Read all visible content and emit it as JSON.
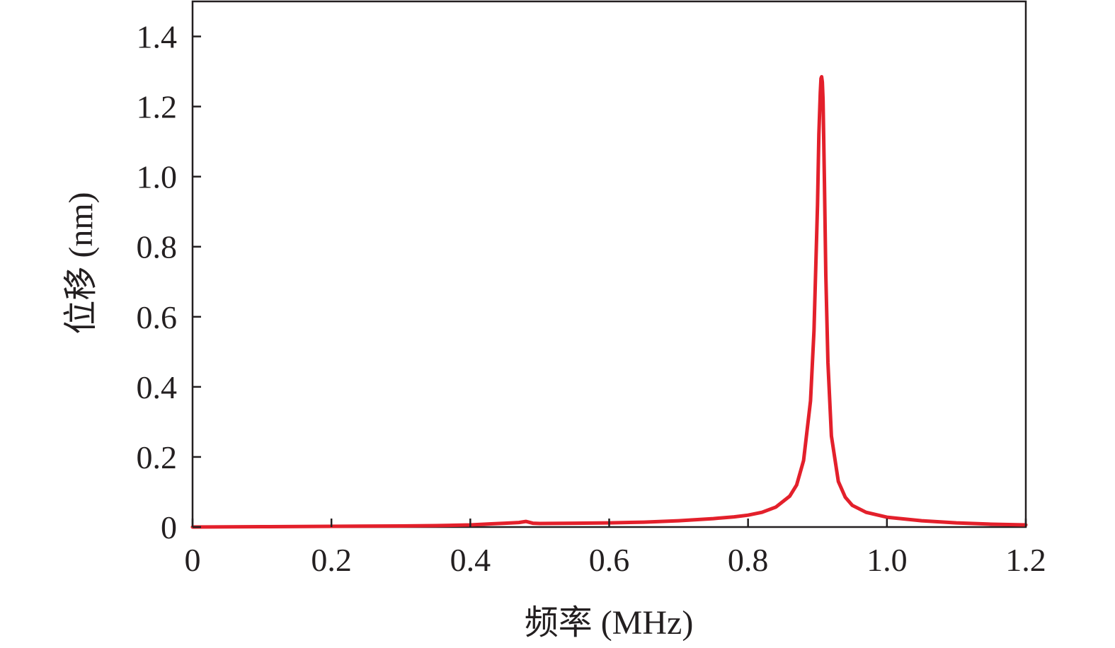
{
  "chart_data": {
    "type": "line",
    "xlabel": "频率 (MHz)",
    "ylabel": "位移 (nm)",
    "xlim": [
      0,
      1.2
    ],
    "ylim": [
      0,
      1.5
    ],
    "xticks": [
      0,
      0.2,
      0.4,
      0.6,
      0.8,
      1.0,
      1.2
    ],
    "xtick_labels": [
      "0",
      "0.2",
      "0.4",
      "0.6",
      "0.8",
      "1.0",
      "1.2"
    ],
    "yticks": [
      0,
      0.2,
      0.4,
      0.6,
      0.8,
      1.0,
      1.2,
      1.4
    ],
    "ytick_labels": [
      "0",
      "0.2",
      "0.4",
      "0.6",
      "0.8",
      "1.0",
      "1.2",
      "1.4"
    ],
    "grid": false,
    "legend": "none",
    "series": [
      {
        "color": "#e3202b",
        "x": [
          0,
          0.1,
          0.2,
          0.3,
          0.35,
          0.4,
          0.43,
          0.45,
          0.47,
          0.48,
          0.49,
          0.5,
          0.55,
          0.6,
          0.65,
          0.7,
          0.75,
          0.78,
          0.8,
          0.82,
          0.84,
          0.86,
          0.87,
          0.88,
          0.89,
          0.895,
          0.9,
          0.902,
          0.904,
          0.905,
          0.906,
          0.907,
          0.908,
          0.91,
          0.912,
          0.915,
          0.92,
          0.93,
          0.94,
          0.95,
          0.97,
          1.0,
          1.05,
          1.1,
          1.15,
          1.2
        ],
        "y": [
          0,
          0.001,
          0.002,
          0.003,
          0.004,
          0.006,
          0.009,
          0.011,
          0.013,
          0.016,
          0.011,
          0.01,
          0.011,
          0.012,
          0.014,
          0.018,
          0.024,
          0.029,
          0.034,
          0.042,
          0.057,
          0.088,
          0.12,
          0.19,
          0.36,
          0.56,
          0.92,
          1.12,
          1.24,
          1.28,
          1.285,
          1.27,
          1.22,
          0.98,
          0.72,
          0.47,
          0.26,
          0.13,
          0.085,
          0.062,
          0.042,
          0.028,
          0.018,
          0.012,
          0.008,
          0.006
        ]
      }
    ]
  }
}
